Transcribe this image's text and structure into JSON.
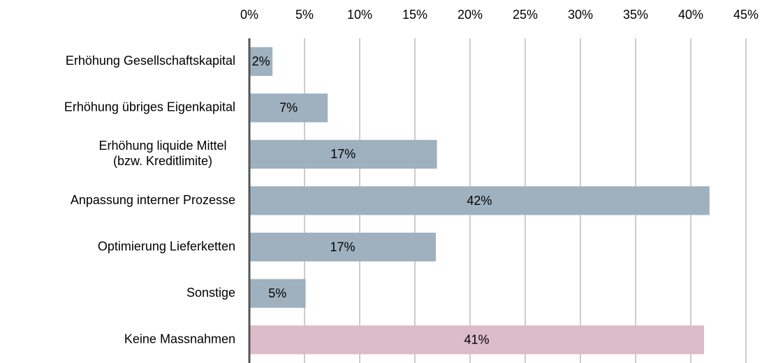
{
  "chart_data": {
    "type": "hbar",
    "categories": [
      "Erhöhung Gesellschaftskapital",
      "Erhöhung übriges Eigenkapital",
      [
        "Erhöhung liquide Mittel",
        "(bzw. Kreditlimite)"
      ],
      "Anpassung interner Prozesse",
      "Optimierung Lieferketten",
      "Sonstige",
      "Keine Massnahmen"
    ],
    "values": [
      2.1,
      7.1,
      17,
      41.7,
      16.9,
      5.1,
      41.2
    ],
    "value_labels": [
      "2%",
      "7%",
      "17%",
      "42%",
      "17%",
      "5%",
      "41%"
    ],
    "colors": [
      "#9fb1bf",
      "#9fb1bf",
      "#9fb1bf",
      "#9fb1bf",
      "#9fb1bf",
      "#9fb1bf",
      "#dcbcc8"
    ],
    "xlim": [
      0,
      45
    ],
    "xticks": [
      {
        "value": 0,
        "label": "0%"
      },
      {
        "value": 5,
        "label": "5%"
      },
      {
        "value": 10,
        "label": "10%"
      },
      {
        "value": 15,
        "label": "15%"
      },
      {
        "value": 20,
        "label": "20%"
      },
      {
        "value": 25,
        "label": "25%"
      },
      {
        "value": 30,
        "label": "30%"
      },
      {
        "value": 35,
        "label": "35%"
      },
      {
        "value": 40,
        "label": "40%"
      },
      {
        "value": 45,
        "label": "45%"
      }
    ],
    "grid": true
  }
}
